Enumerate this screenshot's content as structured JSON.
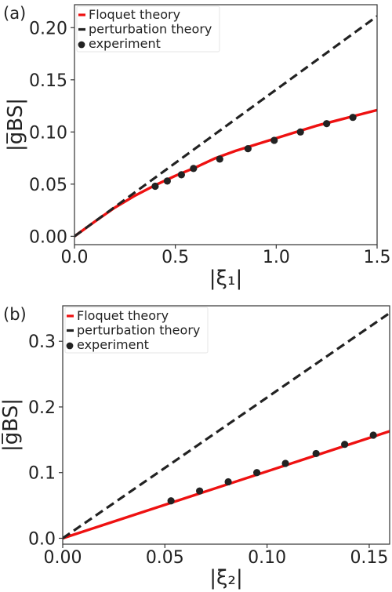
{
  "chart_data": [
    {
      "panel_label": "(a)",
      "type": "line",
      "xlabel": "|ξ₁|",
      "ylabel": "|g̅BS|",
      "xlim": [
        0.0,
        1.5
      ],
      "ylim": [
        -0.008,
        0.222
      ],
      "xticks": [
        0.0,
        0.5,
        1.0,
        1.5
      ],
      "xtick_labels": [
        "0.0",
        "0.5",
        "1.0",
        "1.5"
      ],
      "yticks": [
        0.0,
        0.05,
        0.1,
        0.15,
        0.2
      ],
      "ytick_labels": [
        "0.00",
        "0.05",
        "0.10",
        "0.15",
        "0.20"
      ],
      "grid": false,
      "legend_position": "top-left",
      "series": [
        {
          "name": "Floquet theory",
          "kind": "line",
          "style": "solid",
          "color": "#ee1111",
          "x": [
            0.0,
            0.1,
            0.2,
            0.3,
            0.4,
            0.5,
            0.6,
            0.7,
            0.8,
            0.9,
            1.0,
            1.1,
            1.2,
            1.3,
            1.4,
            1.5
          ],
          "y": [
            0.0,
            0.014,
            0.0275,
            0.039,
            0.049,
            0.058,
            0.066,
            0.075,
            0.082,
            0.088,
            0.094,
            0.1,
            0.106,
            0.111,
            0.116,
            0.121
          ]
        },
        {
          "name": "perturbation theory",
          "kind": "line",
          "style": "dashed",
          "color": "#222222",
          "x": [
            0.0,
            1.5
          ],
          "y": [
            0.0,
            0.211
          ]
        },
        {
          "name": "experiment",
          "kind": "scatter",
          "color": "#222222",
          "x": [
            0.4,
            0.46,
            0.53,
            0.59,
            0.72,
            0.86,
            0.99,
            1.12,
            1.25,
            1.38
          ],
          "y": [
            0.048,
            0.053,
            0.059,
            0.065,
            0.074,
            0.084,
            0.092,
            0.1,
            0.108,
            0.114
          ]
        }
      ]
    },
    {
      "panel_label": "(b)",
      "type": "line",
      "xlabel": "|ξ₂|",
      "ylabel": "|g̅BS|",
      "xlim": [
        0.0,
        0.16
      ],
      "ylim": [
        -0.009,
        0.354
      ],
      "xticks": [
        0.0,
        0.05,
        0.1,
        0.15
      ],
      "xtick_labels": [
        "0.00",
        "0.05",
        "0.10",
        "0.15"
      ],
      "yticks": [
        0.0,
        0.1,
        0.2,
        0.3
      ],
      "ytick_labels": [
        "0.0",
        "0.1",
        "0.2",
        "0.3"
      ],
      "grid": false,
      "legend_position": "top-left",
      "series": [
        {
          "name": "Floquet theory",
          "kind": "line",
          "style": "solid",
          "color": "#ee1111",
          "x": [
            0.0,
            0.16
          ],
          "y": [
            0.0,
            0.163
          ]
        },
        {
          "name": "perturbation theory",
          "kind": "line",
          "style": "dashed",
          "color": "#222222",
          "x": [
            0.0,
            0.16
          ],
          "y": [
            0.0,
            0.343
          ]
        },
        {
          "name": "experiment",
          "kind": "scatter",
          "color": "#222222",
          "x": [
            0.053,
            0.067,
            0.081,
            0.095,
            0.109,
            0.124,
            0.138,
            0.152
          ],
          "y": [
            0.057,
            0.072,
            0.086,
            0.1,
            0.114,
            0.129,
            0.143,
            0.157
          ]
        }
      ]
    }
  ]
}
